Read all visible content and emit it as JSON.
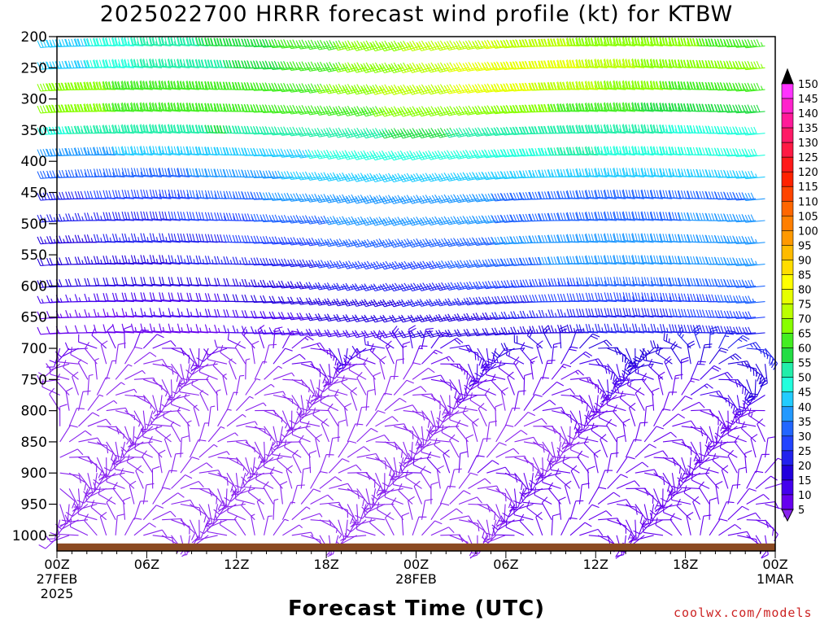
{
  "chart_data": {
    "type": "wind_profile",
    "title": "2025022700 HRRR forecast wind profile (kt) for KTBW",
    "xlabel": "Forecast Time (UTC)",
    "ylabel": "",
    "y_levels": [
      200,
      250,
      300,
      350,
      400,
      450,
      500,
      550,
      600,
      650,
      700,
      750,
      800,
      850,
      900,
      950,
      1000
    ],
    "y_tick_labels": [
      "200",
      "250",
      "300",
      "350",
      "400",
      "450",
      "500",
      "550",
      "600",
      "650",
      "700",
      "750",
      "800",
      "850",
      "900",
      "950",
      "1000"
    ],
    "ylim": [
      1025,
      200
    ],
    "x_ticks": [
      {
        "hour": 0,
        "line1": "00Z",
        "line2": "27FEB",
        "line3": "2025"
      },
      {
        "hour": 6,
        "line1": "06Z",
        "line2": "",
        "line3": ""
      },
      {
        "hour": 12,
        "line1": "12Z",
        "line2": "",
        "line3": ""
      },
      {
        "hour": 18,
        "line1": "18Z",
        "line2": "",
        "line3": ""
      },
      {
        "hour": 24,
        "line1": "00Z",
        "line2": "28FEB",
        "line3": ""
      },
      {
        "hour": 30,
        "line1": "06Z",
        "line2": "",
        "line3": ""
      },
      {
        "hour": 36,
        "line1": "12Z",
        "line2": "",
        "line3": ""
      },
      {
        "hour": 42,
        "line1": "18Z",
        "line2": "",
        "line3": ""
      },
      {
        "hour": 48,
        "line1": "00Z",
        "line2": "1MAR",
        "line3": ""
      }
    ],
    "xlim": [
      0,
      48
    ],
    "ground_pressure": 1013,
    "speed_colorbar": {
      "labels": [
        "150",
        "145",
        "140",
        "135",
        "130",
        "125",
        "120",
        "115",
        "110",
        "105",
        "100",
        "95",
        "90",
        "85",
        "80",
        "75",
        "70",
        "65",
        "60",
        "55",
        "50",
        "45",
        "40",
        "35",
        "30",
        "25",
        "20",
        "15",
        "10",
        "5"
      ],
      "colors": [
        "#ff33ff",
        "#ff22cc",
        "#ff1a99",
        "#ff1a66",
        "#ff1a44",
        "#ff1a1a",
        "#ff2200",
        "#ff4400",
        "#ff6600",
        "#ff7f00",
        "#ff9900",
        "#ffbb00",
        "#ffdd00",
        "#ffff00",
        "#e6ff00",
        "#bbff00",
        "#88ff00",
        "#44ee22",
        "#22dd44",
        "#22eeaa",
        "#22ffdd",
        "#22ccff",
        "#2299ff",
        "#2266ff",
        "#2244ff",
        "#2222ee",
        "#2200dd",
        "#4400ee",
        "#6600ee",
        "#8822ee"
      ]
    },
    "speed_profile_kt": {
      "pressure": [
        200,
        250,
        300,
        350,
        400,
        450,
        500,
        550,
        600,
        650,
        700,
        750,
        800,
        850,
        900,
        950,
        1000
      ],
      "hours": [
        0,
        6,
        12,
        18,
        24,
        30,
        36,
        42,
        48
      ],
      "speeds": [
        [
          45,
          55,
          62,
          68,
          75,
          78,
          72,
          70,
          68
        ],
        [
          45,
          55,
          60,
          68,
          75,
          85,
          80,
          72,
          70
        ],
        [
          85,
          75,
          68,
          70,
          78,
          82,
          75,
          68,
          65
        ],
        [
          55,
          60,
          62,
          58,
          62,
          60,
          58,
          55,
          52
        ],
        [
          40,
          42,
          45,
          48,
          50,
          52,
          55,
          52,
          50
        ],
        [
          30,
          32,
          38,
          45,
          42,
          40,
          40,
          38,
          40
        ],
        [
          25,
          28,
          32,
          38,
          45,
          40,
          38,
          40,
          42
        ],
        [
          22,
          25,
          28,
          32,
          35,
          40,
          45,
          42,
          45
        ],
        [
          20,
          22,
          22,
          25,
          28,
          32,
          35,
          38,
          40
        ],
        [
          12,
          15,
          18,
          20,
          22,
          25,
          28,
          30,
          32
        ],
        [
          10,
          10,
          12,
          15,
          18,
          20,
          22,
          25,
          28
        ],
        [
          8,
          6,
          6,
          8,
          10,
          12,
          15,
          18,
          22
        ],
        [
          8,
          6,
          6,
          8,
          8,
          10,
          10,
          12,
          15
        ],
        [
          8,
          8,
          6,
          8,
          8,
          8,
          10,
          10,
          12
        ],
        [
          10,
          8,
          8,
          8,
          10,
          10,
          10,
          10,
          10
        ],
        [
          8,
          8,
          8,
          8,
          8,
          10,
          12,
          12,
          12
        ],
        [
          8,
          8,
          6,
          6,
          8,
          10,
          12,
          12,
          12
        ]
      ]
    }
  },
  "credit": "coolwx.com/models"
}
